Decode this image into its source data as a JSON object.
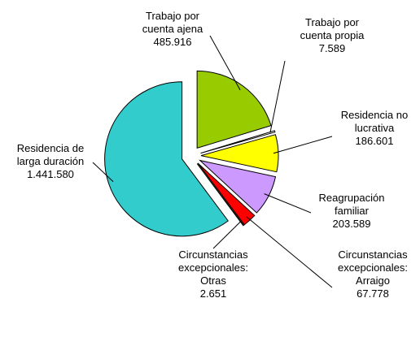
{
  "chart_data": {
    "type": "pie",
    "categories": [
      "Trabajo por cuenta ajena",
      "Trabajo por cuenta propia",
      "Residencia no lucrativa",
      "Reagrupación familiar",
      "Circunstancias excepcionales: Arraigo",
      "Circunstancias excepcionales: Otras",
      "Residencia de larga duración"
    ],
    "values": [
      485916,
      7589,
      186601,
      203589,
      67778,
      2651,
      1441580
    ],
    "value_labels": [
      "485.916",
      "7.589",
      "186.601",
      "203.589",
      "67.778",
      "2.651",
      "1.441.580"
    ],
    "colors": [
      "#99cc00",
      "#ffffff",
      "#ffff00",
      "#cc99ff",
      "#ff0000",
      "#ffffff",
      "#33cccc"
    ]
  }
}
